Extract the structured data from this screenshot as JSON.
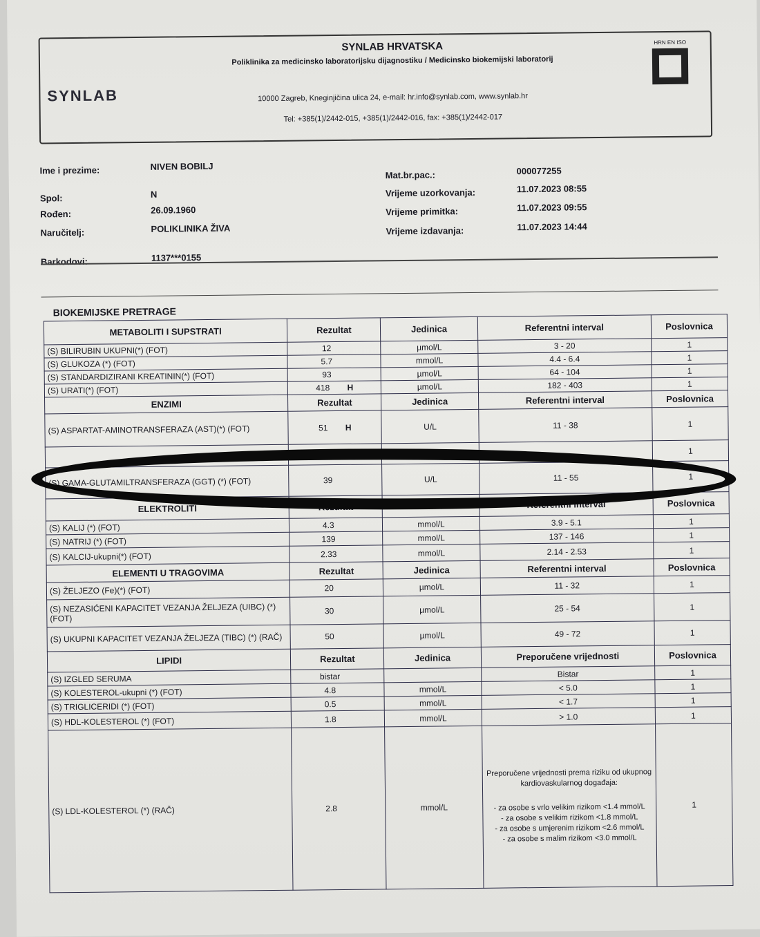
{
  "header": {
    "logo": "SYNLAB",
    "title": "SYNLAB HRVATSKA",
    "subtitle": "Poliklinika za medicinsko laboratorijsku dijagnostiku / Medicinsko biokemijski laboratorij",
    "address": "10000 Zagreb, Kneginjičina ulica 24, e-mail: hr.info@synlab.com, www.synlab.hr",
    "phone": "Tel: +385(1)/2442-015, +385(1)/2442-016, fax: +385(1)/2442-017",
    "badge_text": "HRN EN ISO"
  },
  "patient": {
    "left": [
      {
        "label": "Ime i prezime:",
        "value": "NIVEN BOBILJ"
      },
      {
        "label": "Spol:",
        "value": "N"
      },
      {
        "label": "Rođen:",
        "value": "26.09.1960"
      },
      {
        "label": "Naručitelj:",
        "value": "POLIKLINIKA ŽIVA"
      },
      {
        "label": "Barkodovi:",
        "value": "1137***0155"
      }
    ],
    "right": [
      {
        "label": "Mat.br.pac.:",
        "value": "000077255"
      },
      {
        "label": "Vrijeme uzorkovanja:",
        "value": "11.07.2023 08:55"
      },
      {
        "label": "Vrijeme primitka:",
        "value": "11.07.2023 09:55"
      },
      {
        "label": "Vrijeme izdavanja:",
        "value": "11.07.2023 14:44"
      }
    ]
  },
  "section_title": "BIOKEMIJSKE PRETRAGE",
  "sections": [
    {
      "name": "METABOLITI I SUPSTRATI",
      "cols": [
        "Rezultat",
        "Jedinica",
        "Referentni interval",
        "Poslovnica"
      ],
      "rows": [
        [
          "(S) BILIRUBIN UKUPNI(*) (FOT)",
          "12",
          "",
          "µmol/L",
          "3 - 20",
          "1"
        ],
        [
          "(S) GLUKOZA (*) (FOT)",
          "5.7",
          "",
          "mmol/L",
          "4.4 - 6.4",
          "1"
        ],
        [
          "(S) STANDARDIZIRANI KREATININ(*) (FOT)",
          "93",
          "",
          "µmol/L",
          "64 - 104",
          "1"
        ],
        [
          "(S) URATI(*) (FOT)",
          "418",
          "H",
          "µmol/L",
          "182 - 403",
          "1"
        ]
      ]
    },
    {
      "name": "ENZIMI",
      "cols": [
        "Rezultat",
        "Jedinica",
        "Referentni interval",
        "Poslovnica"
      ],
      "rows": [
        [
          "(S) ASPARTAT-AMINOTRANSFERAZA (AST)(*) (FOT)",
          "51",
          "H",
          "U/L",
          "11 - 38",
          "1"
        ],
        [
          "",
          "",
          "",
          "",
          "",
          "1"
        ],
        [
          "(S) GAMA-GLUTAMILTRANSFERAZA (GGT) (*) (FOT)",
          "39",
          "",
          "U/L",
          "11 - 55",
          "1"
        ]
      ]
    },
    {
      "name": "ELEKTROLITI",
      "cols": [
        "Rezultat",
        "Jedinica",
        "Referentni interval",
        "Poslovnica"
      ],
      "rows": [
        [
          "(S) KALIJ (*) (FOT)",
          "4.3",
          "",
          "mmol/L",
          "3.9 - 5.1",
          "1"
        ],
        [
          "(S) NATRIJ (*) (FOT)",
          "139",
          "",
          "mmol/L",
          "137 - 146",
          "1"
        ],
        [
          "(S) KALCIJ-ukupni(*) (FOT)",
          "2.33",
          "",
          "mmol/L",
          "2.14 - 2.53",
          "1"
        ]
      ]
    },
    {
      "name": "ELEMENTI U TRAGOVIMA",
      "cols": [
        "Rezultat",
        "Jedinica",
        "Referentni interval",
        "Poslovnica"
      ],
      "rows": [
        [
          "(S) ŽELJEZO (Fe)(*) (FOT)",
          "20",
          "",
          "µmol/L",
          "11 - 32",
          "1"
        ],
        [
          "(S) NEZASIĆENI KAPACITET VEZANJA ŽELJEZA (UIBC) (*) (FOT)",
          "30",
          "",
          "µmol/L",
          "25 - 54",
          "1"
        ],
        [
          "(S) UKUPNI KAPACITET VEZANJA ŽELJEZA (TIBC) (*) (RAČ)",
          "50",
          "",
          "µmol/L",
          "49 - 72",
          "1"
        ]
      ]
    },
    {
      "name": "LIPIDI",
      "cols": [
        "Rezultat",
        "Jedinica",
        "Preporučene vrijednosti",
        "Poslovnica"
      ],
      "rows": [
        [
          "(S) IZGLED SERUMA",
          "bistar",
          "",
          "",
          "Bistar",
          "1"
        ],
        [
          "(S) KOLESTEROL-ukupni (*) (FOT)",
          "4.8",
          "",
          "mmol/L",
          "< 5.0",
          "1"
        ],
        [
          "(S) TRIGLICERIDI (*) (FOT)",
          "0.5",
          "",
          "mmol/L",
          "< 1.7",
          "1"
        ],
        [
          "(S) HDL-KOLESTEROL (*) (FOT)",
          "1.8",
          "",
          "mmol/L",
          "> 1.0",
          "1"
        ],
        [
          "(S) LDL-KOLESTEROL (*) (RAČ)",
          "2.8",
          "",
          "mmol/L",
          "Preporučene vrijednosti prema riziku od ukupnog kardiovaskularnog događaja: | - za osobe s vrlo velikim rizikom <1.4 mmol/L | - za osobe s velikim rizikom <1.8 mmol/L | - za osobe s umjerenim rizikom <2.6 mmol/L | - za osobe s malim rizikom <3.0 mmol/L",
          "1"
        ]
      ]
    }
  ],
  "colors": {
    "ink": "#1a1a22",
    "paper": "#e6e6e2",
    "marker": "#0b0b0b"
  }
}
